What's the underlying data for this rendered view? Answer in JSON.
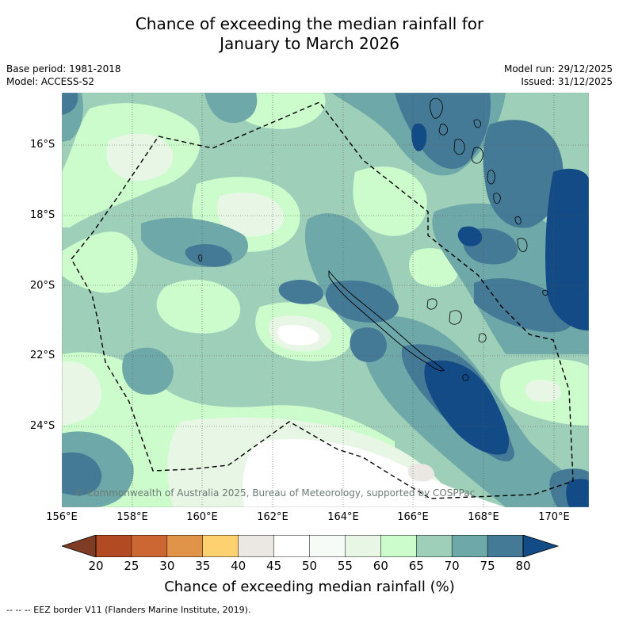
{
  "title_line1": "Chance of exceeding the median rainfall for",
  "title_line2": "January to March 2026",
  "base_period": "Base period: 1981-2018",
  "model": "Model: ACCESS-S2",
  "model_run": "Model run: 29/12/2025",
  "issued": "Issued: 31/12/2025",
  "copyright": "© Commonwealth of Australia 2025, Bureau of Meteorology, supported by COSPPac",
  "lat_labels": [
    "16°S",
    "18°S",
    "20°S",
    "22°S",
    "24°S"
  ],
  "lon_labels": [
    "156°E",
    "158°E",
    "160°E",
    "162°E",
    "164°E",
    "166°E",
    "168°E",
    "170°E"
  ],
  "colorbar": {
    "label": "Chance of exceeding median rainfall (%)",
    "ticks": [
      "20",
      "25",
      "30",
      "35",
      "40",
      "45",
      "50",
      "55",
      "60",
      "65",
      "70",
      "75",
      "80"
    ],
    "colors": [
      "#7f3b24",
      "#b24a23",
      "#cc6633",
      "#e0944a",
      "#fdd070",
      "#ebe8e4",
      "#ffffff",
      "#f7fbf7",
      "#e8f6e6",
      "#ccfccc",
      "#9ecfb8",
      "#6fa8a8",
      "#457a96",
      "#124b85"
    ]
  },
  "footnote": "--  --  -- EEZ border V11 (Flanders Marine Institute, 2019)."
}
